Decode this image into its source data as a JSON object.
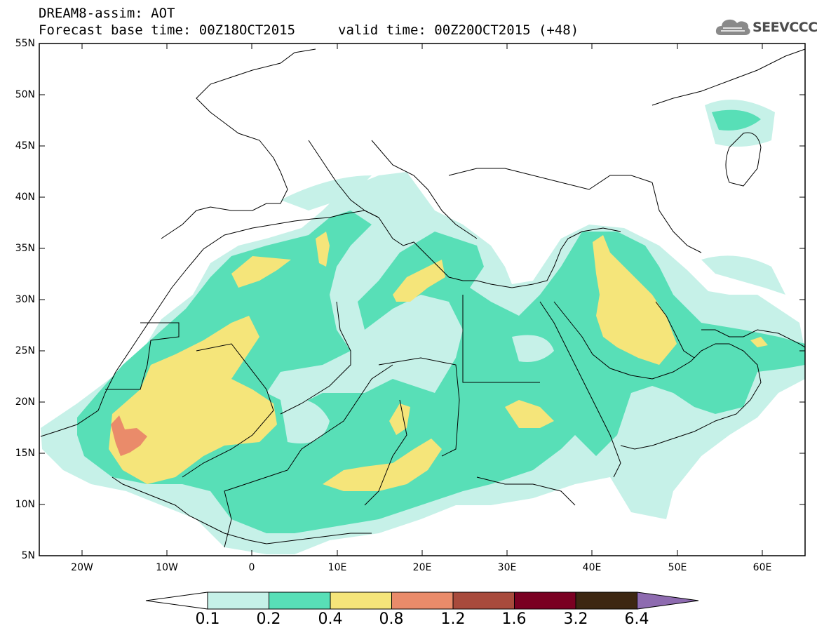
{
  "header": {
    "title_line1": "DREAM8-assim: AOT",
    "title_line2": "Forecast base time: 00Z18OCT2015",
    "valid_time": "valid time: 00Z20OCT2015 (+48)",
    "logo_text": "SEEVCCC",
    "logo_icon": "cloud-icon"
  },
  "map": {
    "lat_labels": [
      "55N",
      "50N",
      "45N",
      "40N",
      "35N",
      "30N",
      "25N",
      "20N",
      "15N",
      "10N",
      "5N"
    ],
    "lon_labels": [
      "20W",
      "10W",
      "0",
      "10E",
      "20E",
      "30E",
      "40E",
      "50E",
      "60E"
    ],
    "lon_range": [
      -25,
      65
    ],
    "lat_range": [
      5,
      55
    ],
    "colors": {
      "bin_0_1": "#c6f1e8",
      "bin_0_2": "#58dfb7",
      "bin_0_4": "#f5e57a",
      "bin_0_8": "#ea8b6a",
      "coastline": "#000000"
    }
  },
  "colorbar": {
    "labels": [
      "0.1",
      "0.2",
      "0.4",
      "0.8",
      "1.2",
      "1.6",
      "3.2",
      "6.4"
    ],
    "colors": [
      "#c6f1e8",
      "#58dfb7",
      "#f5e57a",
      "#ea8b6a",
      "#a84a3c",
      "#7a0022",
      "#3d2712",
      "#8e6bb0"
    ]
  }
}
